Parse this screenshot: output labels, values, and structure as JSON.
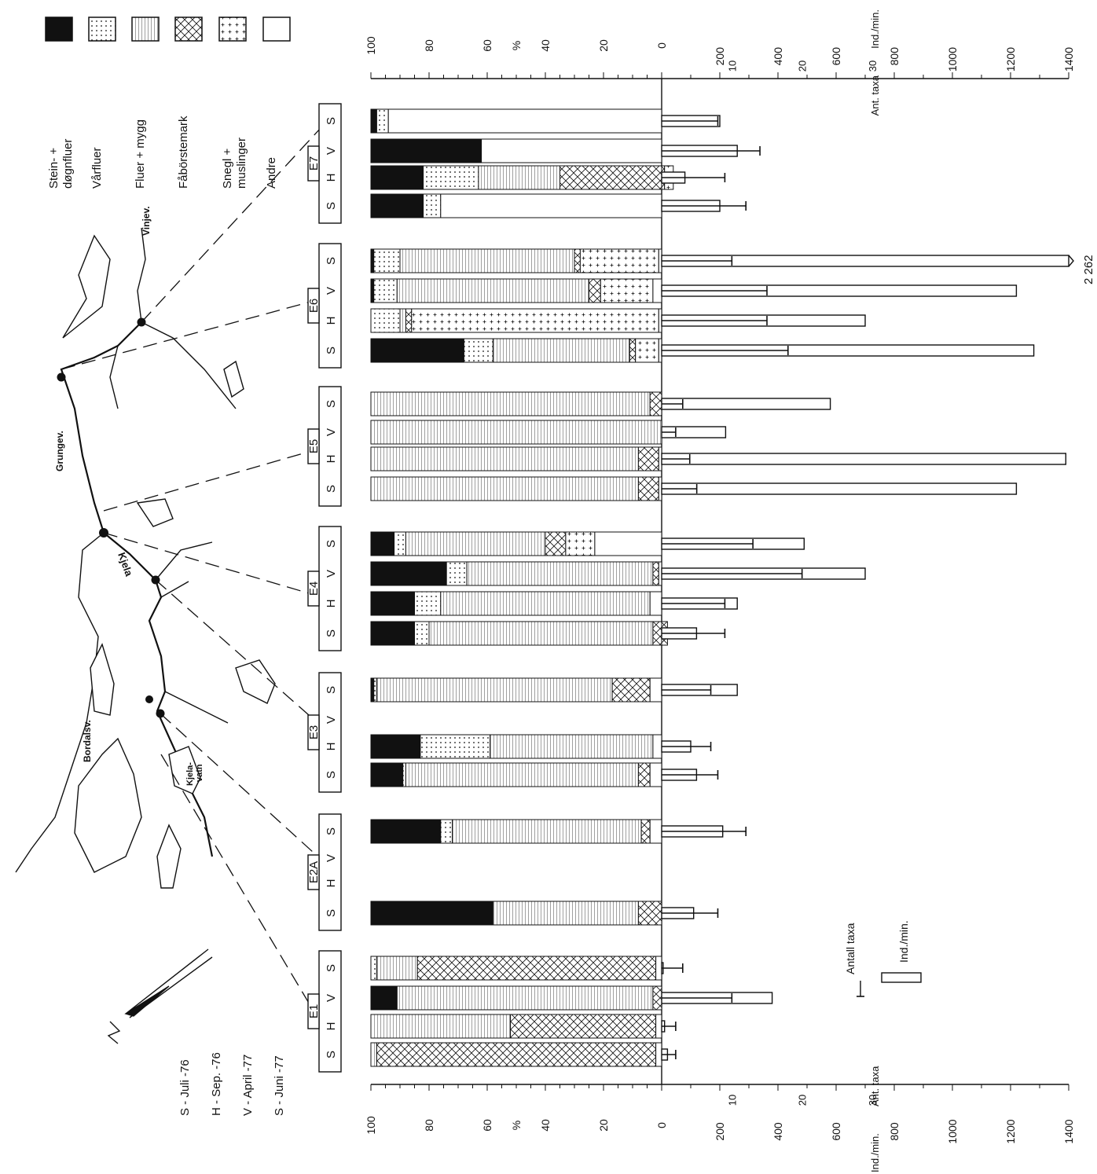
{
  "legend": {
    "items": [
      {
        "key": "stein",
        "lines": [
          "Stein- +",
          "døgnfluer"
        ],
        "fill": "solid"
      },
      {
        "key": "var",
        "lines": [
          "Vårfluer"
        ],
        "fill": "dots"
      },
      {
        "key": "fluer",
        "lines": [
          "Fluer + mygg"
        ],
        "fill": "hlines"
      },
      {
        "key": "fabor",
        "lines": [
          "Fåbörstemark"
        ],
        "fill": "cross"
      },
      {
        "key": "snegl",
        "lines": [
          "Snegl +",
          "muslinger"
        ],
        "fill": "plus"
      },
      {
        "key": "andre",
        "lines": [
          "Andre"
        ],
        "fill": "none"
      }
    ]
  },
  "season_key": [
    "S - Juli -76",
    "H - Sep. -76",
    "V - April -77",
    "S - Juni -77"
  ],
  "season_letters": [
    "S",
    "H",
    "V",
    "S"
  ],
  "map_labels": {
    "vinjev": "Vinjev.",
    "grungev": "Grungev.",
    "kjela": "Kjela",
    "bordalsv": "Bordalsv.",
    "kjelavatn": "Kjela-\nvatn"
  },
  "error_key": {
    "taxa": "Antall taxa",
    "ind": "Ind./min."
  },
  "axes": {
    "pct_label": "%",
    "pct_ticks": [
      "100",
      "80",
      "60",
      "40",
      "20",
      "0"
    ],
    "ind_ticks": [
      "200",
      "400",
      "600",
      "800",
      "1000",
      "1200",
      "1400"
    ],
    "taxa_ticks": [
      "10",
      "20",
      "30"
    ],
    "ind_label": "Ind./min.",
    "taxa_label": "Ant. taxa",
    "broken_value": "2 262"
  },
  "chart_data": {
    "type": "bar",
    "orientation": "horizontal-stacked-percent-with-counts",
    "categories": [
      "Stein- + døgnfluer",
      "Vårfluer",
      "Fluer + mygg",
      "Fåbörstemark",
      "Snegl + muslinger",
      "Andre"
    ],
    "stations": [
      {
        "name": "E1",
        "samples": [
          {
            "season": "S",
            "comp": [
              0,
              0,
              2,
              96,
              0,
              2
            ],
            "ind": 20,
            "taxa": 2
          },
          {
            "season": "H",
            "comp": [
              0,
              0,
              48,
              50,
              0,
              2
            ],
            "ind": 10,
            "taxa": 2
          },
          {
            "season": "V",
            "comp": [
              9,
              0,
              88,
              3,
              0,
              0
            ],
            "ind": 380,
            "taxa": 10
          },
          {
            "season": "S",
            "comp": [
              0,
              2,
              14,
              82,
              0,
              2
            ],
            "ind": 5,
            "taxa": 3
          }
        ]
      },
      {
        "name": "E2A",
        "samples": [
          {
            "season": "S",
            "comp": [
              42,
              0,
              50,
              8,
              0,
              0
            ],
            "ind": 110,
            "taxa": 8
          },
          {
            "season": "H",
            "comp": null,
            "ind": null,
            "taxa": null
          },
          {
            "season": "V",
            "comp": null,
            "ind": null,
            "taxa": null
          },
          {
            "season": "S",
            "comp": [
              24,
              4,
              65,
              3,
              0,
              4
            ],
            "ind": 210,
            "taxa": 12
          }
        ]
      },
      {
        "name": "E3",
        "samples": [
          {
            "season": "S",
            "comp": [
              11,
              1,
              80,
              4,
              0,
              4
            ],
            "ind": 120,
            "taxa": 8
          },
          {
            "season": "H",
            "comp": [
              17,
              24,
              56,
              0,
              0,
              3
            ],
            "ind": 100,
            "taxa": 7
          },
          {
            "season": "V",
            "comp": null,
            "ind": null,
            "taxa": null
          },
          {
            "season": "S",
            "comp": [
              1,
              1,
              81,
              13,
              0,
              4
            ],
            "ind": 260,
            "taxa": 7
          }
        ]
      },
      {
        "name": "E4",
        "samples": [
          {
            "season": "S",
            "comp": [
              15,
              5,
              77,
              5,
              0,
              0
            ],
            "ind": 120,
            "taxa": 9
          },
          {
            "season": "H",
            "comp": [
              15,
              9,
              72,
              0,
              0,
              4
            ],
            "ind": 260,
            "taxa": 9
          },
          {
            "season": "V",
            "comp": [
              26,
              7,
              64,
              2,
              0,
              1
            ],
            "ind": 700,
            "taxa": 20
          },
          {
            "season": "S",
            "comp": [
              8,
              4,
              48,
              7,
              10,
              23
            ],
            "ind": 490,
            "taxa": 13
          }
        ]
      },
      {
        "name": "E5",
        "samples": [
          {
            "season": "S",
            "comp": [
              0,
              0,
              92,
              7,
              0,
              1
            ],
            "ind": 1220,
            "taxa": 5
          },
          {
            "season": "H",
            "comp": [
              0,
              0,
              92,
              7,
              0,
              1
            ],
            "ind": 1390,
            "taxa": 4
          },
          {
            "season": "V",
            "comp": [
              0,
              0,
              100,
              0,
              0,
              0
            ],
            "ind": 220,
            "taxa": 2
          },
          {
            "season": "S",
            "comp": [
              0,
              0,
              96,
              4,
              0,
              0
            ],
            "ind": 580,
            "taxa": 3
          }
        ]
      },
      {
        "name": "E6",
        "samples": [
          {
            "season": "S",
            "comp": [
              32,
              10,
              47,
              2,
              8,
              1
            ],
            "ind": 1280,
            "taxa": 18
          },
          {
            "season": "H",
            "comp": [
              0,
              10,
              2,
              2,
              85,
              1
            ],
            "ind": 700,
            "taxa": 15
          },
          {
            "season": "V",
            "comp": [
              1,
              8,
              66,
              4,
              18,
              3
            ],
            "ind": 1220,
            "taxa": 15
          },
          {
            "season": "S",
            "comp": [
              1,
              9,
              60,
              2,
              27,
              1
            ],
            "ind": 2262,
            "taxa": 10
          }
        ]
      },
      {
        "name": "E7",
        "samples": [
          {
            "season": "S",
            "comp": [
              18,
              6,
              0,
              0,
              0,
              76
            ],
            "ind": 200,
            "taxa": 12
          },
          {
            "season": "H",
            "comp": [
              18,
              19,
              28,
              36,
              3,
              0
            ],
            "ind": 80,
            "taxa": 9
          },
          {
            "season": "V",
            "comp": [
              38,
              0,
              0,
              0,
              0,
              62
            ],
            "ind": 260,
            "taxa": 14
          },
          {
            "season": "S",
            "comp": [
              2,
              4,
              0,
              0,
              0,
              94
            ],
            "ind": 200,
            "taxa": 8
          }
        ]
      }
    ],
    "pct_range": [
      0,
      100
    ],
    "ind_range": [
      0,
      1400
    ],
    "taxa_range": [
      0,
      30
    ]
  }
}
